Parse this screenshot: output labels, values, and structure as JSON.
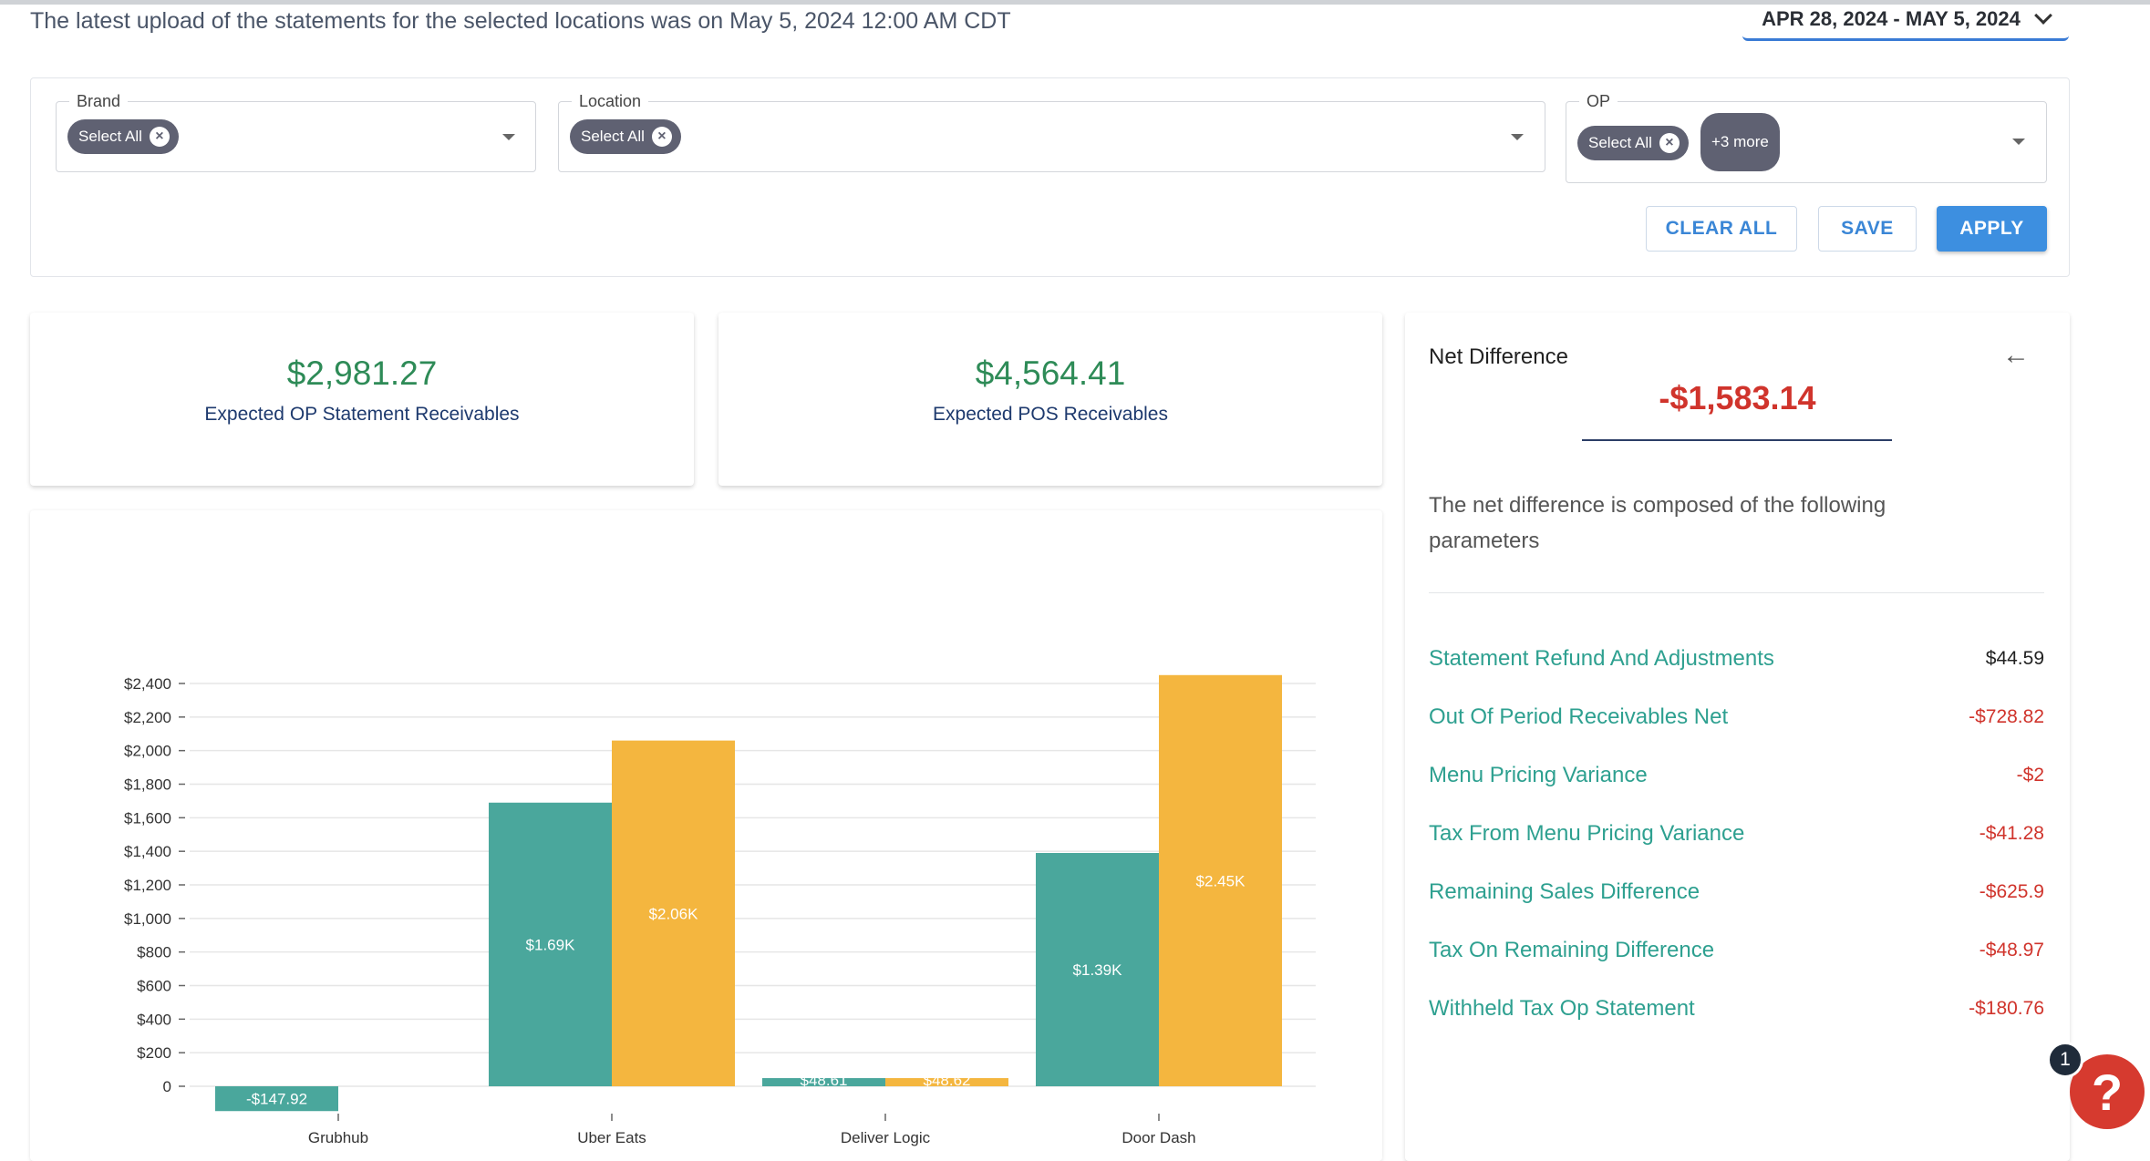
{
  "header": {
    "upload_message": "The latest upload of the statements for the selected locations was on May 5, 2024 12:00 AM CDT",
    "date_range": "APR 28, 2024 - MAY 5, 2024"
  },
  "filters": {
    "brand": {
      "label": "Brand",
      "chip": "Select All"
    },
    "location": {
      "label": "Location",
      "chip": "Select All"
    },
    "op": {
      "label": "OP",
      "chip": "Select All",
      "more": "+3 more"
    },
    "buttons": {
      "clear": "CLEAR ALL",
      "save": "SAVE",
      "apply": "APPLY"
    }
  },
  "kpis": [
    {
      "value": "$2,981.27",
      "label": "Expected OP Statement Receivables"
    },
    {
      "value": "$4,564.41",
      "label": "Expected POS Receivables"
    }
  ],
  "net_difference": {
    "title": "Net Difference",
    "value": "-$1,583.14",
    "description": "The net difference is composed of the following parameters",
    "params": [
      {
        "name": "Statement Refund And Adjustments",
        "value": "$44.59",
        "positive": true
      },
      {
        "name": "Out Of Period Receivables Net",
        "value": "-$728.82",
        "positive": false
      },
      {
        "name": "Menu Pricing Variance",
        "value": "-$2",
        "positive": false
      },
      {
        "name": "Tax From Menu Pricing Variance",
        "value": "-$41.28",
        "positive": false
      },
      {
        "name": "Remaining Sales Difference",
        "value": "-$625.9",
        "positive": false
      },
      {
        "name": "Tax On Remaining Difference",
        "value": "-$48.97",
        "positive": false
      },
      {
        "name": "Withheld Tax Op Statement",
        "value": "-$180.76",
        "positive": false
      }
    ]
  },
  "help": {
    "badge_count": "1",
    "icon": "?"
  },
  "colors": {
    "series_op": "#4aa79c",
    "series_pos": "#f4b63f",
    "negative": "#d0342c",
    "positive_kpi": "#2e8b57",
    "accent": "#3d8fe0"
  },
  "chart_data": {
    "type": "bar",
    "categories": [
      "Grubhub",
      "Uber Eats",
      "Deliver Logic",
      "Door Dash"
    ],
    "series": [
      {
        "values": [
          -147.92,
          1690,
          48.61,
          1390
        ],
        "labels": [
          "-$147.92",
          "$1.69K",
          "$48.61",
          "$1.39K"
        ],
        "color": "#4aa79c"
      },
      {
        "values": [
          0,
          2060,
          48.62,
          2450
        ],
        "labels": [
          "",
          "$2.06K",
          "$48.62",
          "$2.45K"
        ],
        "color": "#f4b63f"
      }
    ],
    "y_ticks": [
      0,
      200,
      400,
      600,
      800,
      1000,
      1200,
      1400,
      1600,
      1800,
      2000,
      2200,
      2400
    ],
    "y_tick_labels": [
      "0",
      "$200",
      "$400",
      "$600",
      "$800",
      "$1,000",
      "$1,200",
      "$1,400",
      "$1,600",
      "$1,800",
      "$2,000",
      "$2,200",
      "$2,400"
    ],
    "ylim": [
      -147.92,
      2450
    ],
    "grid": true,
    "legend": "none"
  }
}
